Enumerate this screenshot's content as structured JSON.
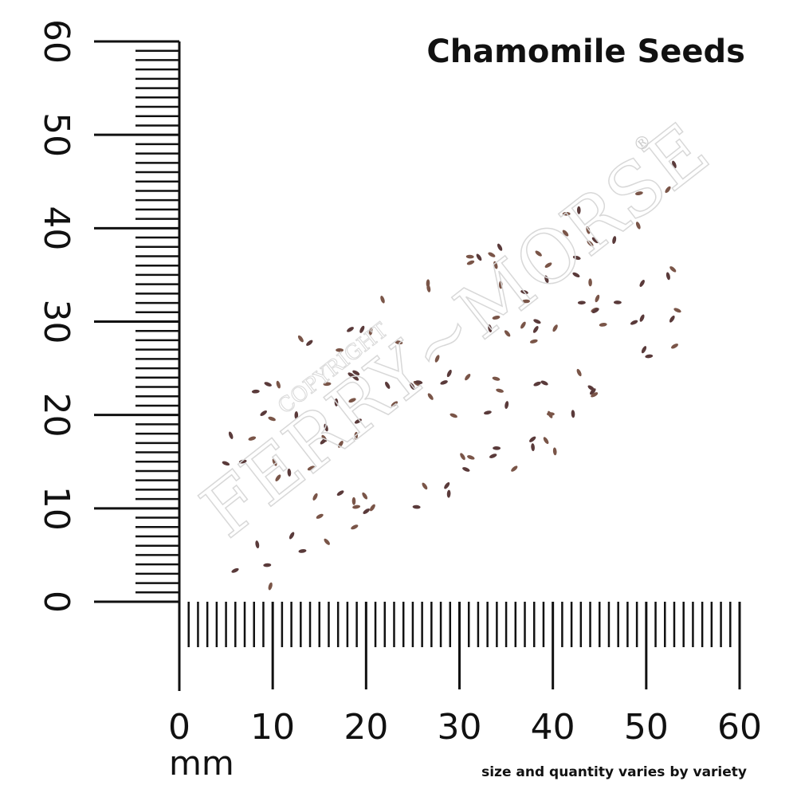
{
  "header": {
    "title": "Chamomile Seeds"
  },
  "rulers": {
    "x_labels": [
      "0",
      "10",
      "20",
      "30",
      "40",
      "50",
      "60"
    ],
    "y_labels": [
      "0",
      "10",
      "20",
      "30",
      "40",
      "50",
      "60"
    ],
    "unit": "mm"
  },
  "watermark": {
    "brand": "FERRY~MORSE",
    "notice": "COPYRIGHT",
    "mark": "®"
  },
  "footer": {
    "note": "size and quantity varies by variety"
  }
}
